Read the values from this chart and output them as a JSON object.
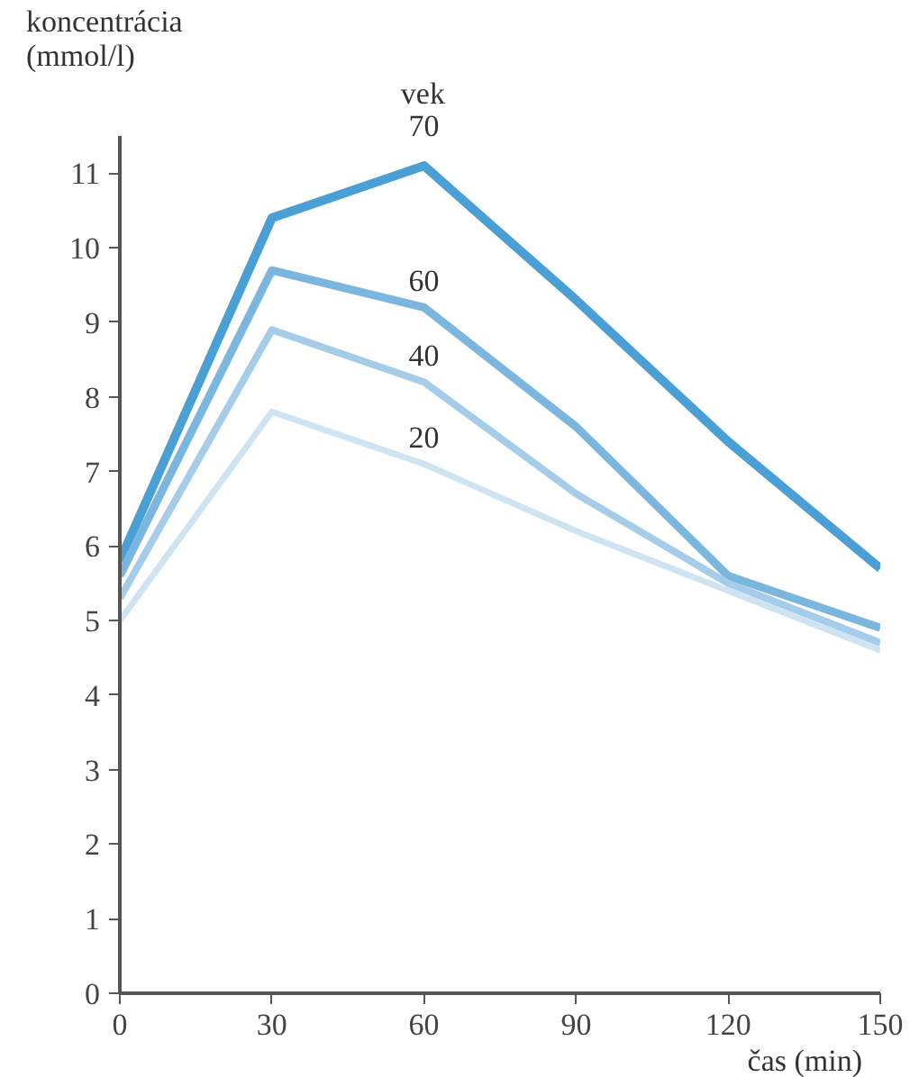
{
  "chart_data": {
    "type": "line",
    "ylabel": "koncentrácia\n(mmol/l)",
    "xlabel": "čas (min)",
    "legend_title": "vek",
    "x": [
      0,
      30,
      60,
      90,
      120,
      150
    ],
    "series": [
      {
        "name": "70",
        "color": "#4a9fd5",
        "values": [
          5.8,
          10.4,
          11.1,
          9.3,
          7.4,
          5.7
        ]
      },
      {
        "name": "60",
        "color": "#7ab6de",
        "values": [
          5.6,
          9.7,
          9.2,
          7.6,
          5.6,
          4.9
        ]
      },
      {
        "name": "40",
        "color": "#a5cde9",
        "values": [
          5.3,
          8.9,
          8.2,
          6.7,
          5.5,
          4.7
        ]
      },
      {
        "name": "20",
        "color": "#cfe4f3",
        "values": [
          5.0,
          7.8,
          7.1,
          6.2,
          5.4,
          4.6
        ]
      }
    ],
    "xlim": [
      0,
      150
    ],
    "ylim": [
      0,
      11.5
    ],
    "xticks": [
      0,
      30,
      60,
      90,
      120,
      150
    ],
    "yticks": [
      0,
      1,
      2,
      3,
      4,
      5,
      6,
      7,
      8,
      9,
      10,
      11
    ],
    "grid": false,
    "marker": "none",
    "line_style": "solid"
  }
}
